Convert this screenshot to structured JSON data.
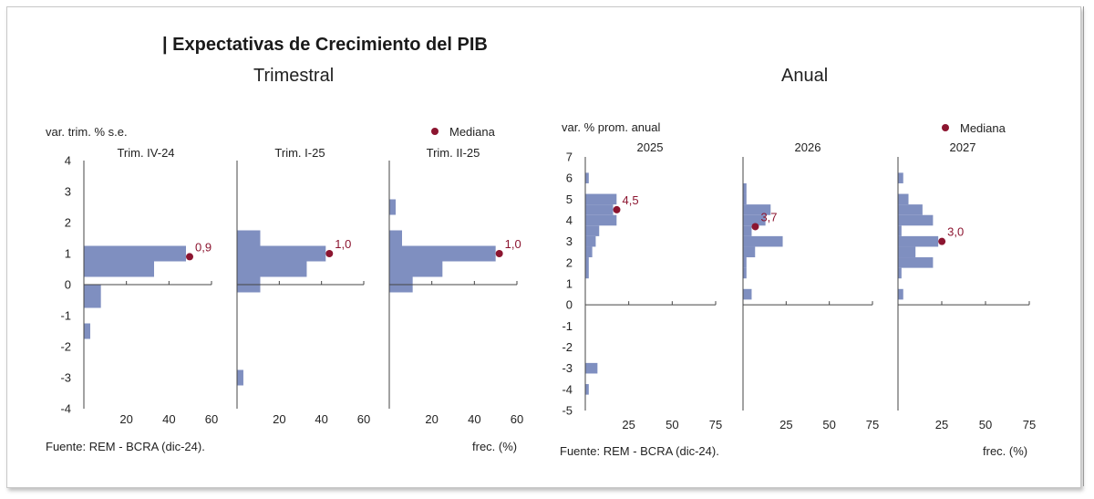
{
  "title": "| Expectativas de Crecimiento del PIB",
  "sections": {
    "quarterly": {
      "title": "Trimestral",
      "ylabel": "var. trim. % s.e.",
      "legend": "Mediana",
      "source": "Fuente: REM - BCRA (dic-24).",
      "xlabel": "frec. (%)"
    },
    "annual": {
      "title": "Anual",
      "ylabel": "var. % prom. anual",
      "legend": "Mediana",
      "source": "Fuente: REM - BCRA (dic-24).",
      "xlabel": "frec. (%)"
    }
  },
  "colors": {
    "bar": "#7f8fc0",
    "median": "#8c1530",
    "axis": "#444444",
    "text": "#222222"
  },
  "chart_data": [
    {
      "type": "bar",
      "orientation": "horizontal",
      "title": "Trim. IV-24",
      "ylim": [
        -4,
        4
      ],
      "yticks": [
        -4,
        -3,
        -2,
        -1,
        0,
        1,
        2,
        3,
        4
      ],
      "xlim": [
        0,
        60
      ],
      "xticks": [
        20,
        40,
        60
      ],
      "bins": [
        [
          -1.75,
          -1.25,
          3
        ],
        [
          -0.75,
          0,
          8
        ],
        [
          0.25,
          0.75,
          33
        ],
        [
          0.75,
          1.25,
          48
        ]
      ],
      "median": 0.9,
      "median_label": "0,9"
    },
    {
      "type": "bar",
      "orientation": "horizontal",
      "title": "Trim. I-25",
      "ylim": [
        -4,
        4
      ],
      "yticks": [
        -4,
        -3,
        -2,
        -1,
        0,
        1,
        2,
        3,
        4
      ],
      "xlim": [
        0,
        60
      ],
      "xticks": [
        20,
        40,
        60
      ],
      "bins": [
        [
          -3.25,
          -2.75,
          3
        ],
        [
          -0.25,
          0.25,
          11
        ],
        [
          0.25,
          0.75,
          33
        ],
        [
          0.75,
          1.25,
          42
        ],
        [
          1.25,
          1.75,
          11
        ]
      ],
      "median": 1.0,
      "median_label": "1,0"
    },
    {
      "type": "bar",
      "orientation": "horizontal",
      "title": "Trim. II-25",
      "ylim": [
        -4,
        4
      ],
      "yticks": [
        -4,
        -3,
        -2,
        -1,
        0,
        1,
        2,
        3,
        4
      ],
      "xlim": [
        0,
        60
      ],
      "xticks": [
        20,
        40,
        60
      ],
      "bins": [
        [
          -0.25,
          0.25,
          11
        ],
        [
          0.25,
          0.75,
          25
        ],
        [
          0.75,
          1.25,
          50
        ],
        [
          1.25,
          1.75,
          6
        ],
        [
          2.25,
          2.75,
          3
        ]
      ],
      "median": 1.0,
      "median_label": "1,0"
    },
    {
      "type": "bar",
      "orientation": "horizontal",
      "title": "2025",
      "ylim": [
        -5,
        7
      ],
      "yticks": [
        -5,
        -4,
        -3,
        -2,
        -1,
        0,
        1,
        2,
        3,
        4,
        5,
        6,
        7
      ],
      "xlim": [
        0,
        75
      ],
      "xticks": [
        25,
        50,
        75
      ],
      "bins": [
        [
          -4.25,
          -3.75,
          2
        ],
        [
          -3.25,
          -2.75,
          7
        ],
        [
          1.25,
          2.25,
          2
        ],
        [
          2.25,
          2.75,
          4
        ],
        [
          2.75,
          3.25,
          6
        ],
        [
          3.25,
          3.75,
          8
        ],
        [
          3.75,
          4.25,
          18
        ],
        [
          4.25,
          4.75,
          16
        ],
        [
          4.75,
          5.25,
          18
        ],
        [
          5.75,
          6.25,
          2
        ]
      ],
      "median": 4.5,
      "median_label": "4,5"
    },
    {
      "type": "bar",
      "orientation": "horizontal",
      "title": "2026",
      "ylim": [
        -5,
        7
      ],
      "yticks": [
        -5,
        -4,
        -3,
        -2,
        -1,
        0,
        1,
        2,
        3,
        4,
        5,
        6,
        7
      ],
      "xlim": [
        0,
        75
      ],
      "xticks": [
        25,
        50,
        75
      ],
      "bins": [
        [
          0.25,
          0.75,
          5
        ],
        [
          1.25,
          1.75,
          2
        ],
        [
          1.75,
          2.25,
          2
        ],
        [
          2.25,
          2.75,
          7
        ],
        [
          2.75,
          3.25,
          23
        ],
        [
          3.25,
          3.75,
          5
        ],
        [
          3.75,
          4.25,
          13
        ],
        [
          4.25,
          4.75,
          16
        ],
        [
          4.75,
          5.25,
          2
        ],
        [
          5.25,
          5.75,
          2
        ]
      ],
      "median": 3.7,
      "median_label": "3,7"
    },
    {
      "type": "bar",
      "orientation": "horizontal",
      "title": "2027",
      "ylim": [
        -5,
        7
      ],
      "yticks": [
        -5,
        -4,
        -3,
        -2,
        -1,
        0,
        1,
        2,
        3,
        4,
        5,
        6,
        7
      ],
      "xlim": [
        0,
        75
      ],
      "xticks": [
        25,
        50,
        75
      ],
      "bins": [
        [
          0.25,
          0.75,
          3
        ],
        [
          1.25,
          1.75,
          2
        ],
        [
          1.75,
          2.25,
          20
        ],
        [
          2.25,
          2.75,
          10
        ],
        [
          2.75,
          3.25,
          23
        ],
        [
          3.25,
          3.75,
          2
        ],
        [
          3.75,
          4.25,
          20
        ],
        [
          4.25,
          4.75,
          14
        ],
        [
          4.75,
          5.25,
          6
        ],
        [
          5.75,
          6.25,
          3
        ]
      ],
      "median": 3.0,
      "median_label": "3,0"
    }
  ]
}
